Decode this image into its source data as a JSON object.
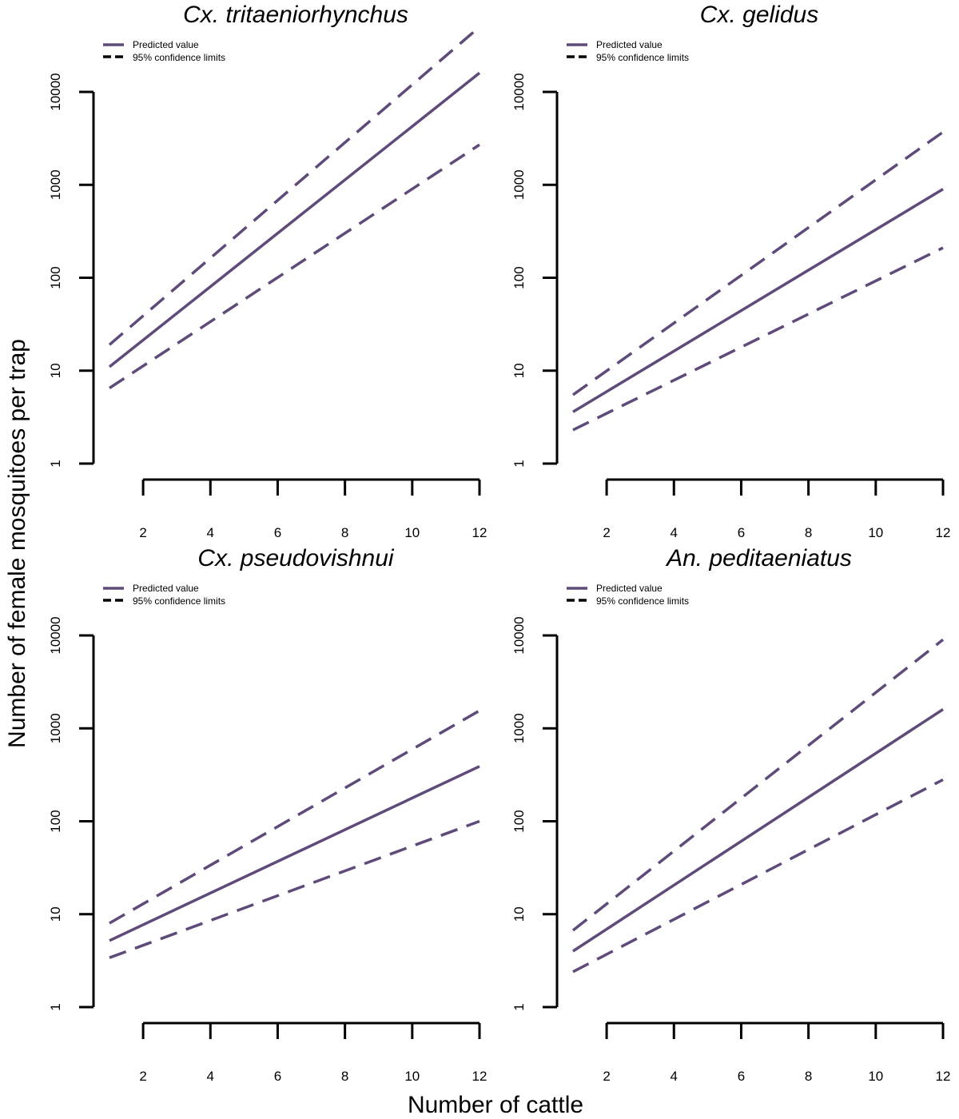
{
  "figure": {
    "ylabel": "Number of female mosquitoes per trap",
    "xlabel": "Number of cattle",
    "legend": {
      "predicted": "Predicted value",
      "ci": "95% confidence limits"
    },
    "line_color": "#5e4b7a"
  },
  "chart_data": [
    {
      "type": "line",
      "title": "Cx. tritaeniorhynchus",
      "yscale": "log",
      "ylim": [
        1,
        10000
      ],
      "xlim": [
        1,
        12
      ],
      "xticks": [
        2,
        4,
        6,
        8,
        10,
        12
      ],
      "yticks": [
        1,
        10,
        100,
        1000,
        10000
      ],
      "x": [
        1,
        12
      ],
      "series": [
        {
          "name": "Predicted value",
          "values": [
            11,
            16000
          ]
        },
        {
          "name": "95% confidence limits",
          "values": [
            19,
            50000
          ]
        },
        {
          "name": "95% confidence limits",
          "values": [
            6.5,
            2700
          ]
        }
      ]
    },
    {
      "type": "line",
      "title": "Cx. gelidus",
      "yscale": "log",
      "ylim": [
        1,
        10000
      ],
      "xlim": [
        1,
        12
      ],
      "xticks": [
        2,
        4,
        6,
        8,
        10,
        12
      ],
      "yticks": [
        1,
        10,
        100,
        1000,
        10000
      ],
      "x": [
        1,
        12
      ],
      "series": [
        {
          "name": "Predicted value",
          "values": [
            3.6,
            900
          ]
        },
        {
          "name": "95% confidence limits",
          "values": [
            5.5,
            3700
          ]
        },
        {
          "name": "95% confidence limits",
          "values": [
            2.3,
            210
          ]
        }
      ]
    },
    {
      "type": "line",
      "title": "Cx. pseudovishnui",
      "yscale": "log",
      "ylim": [
        1,
        10000
      ],
      "xlim": [
        1,
        12
      ],
      "xticks": [
        2,
        4,
        6,
        8,
        10,
        12
      ],
      "yticks": [
        1,
        10,
        100,
        1000,
        10000
      ],
      "x": [
        1,
        12
      ],
      "series": [
        {
          "name": "Predicted value",
          "values": [
            5.2,
            390
          ]
        },
        {
          "name": "95% confidence limits",
          "values": [
            8,
            1550
          ]
        },
        {
          "name": "95% confidence limits",
          "values": [
            3.4,
            100
          ]
        }
      ]
    },
    {
      "type": "line",
      "title": "An. peditaeniatus",
      "yscale": "log",
      "ylim": [
        1,
        10000
      ],
      "xlim": [
        1,
        12
      ],
      "xticks": [
        2,
        4,
        6,
        8,
        10,
        12
      ],
      "yticks": [
        1,
        10,
        100,
        1000,
        10000
      ],
      "x": [
        1,
        12
      ],
      "series": [
        {
          "name": "Predicted value",
          "values": [
            4,
            1600
          ]
        },
        {
          "name": "95% confidence limits",
          "values": [
            6.7,
            9000
          ]
        },
        {
          "name": "95% confidence limits",
          "values": [
            2.4,
            280
          ]
        }
      ]
    }
  ]
}
